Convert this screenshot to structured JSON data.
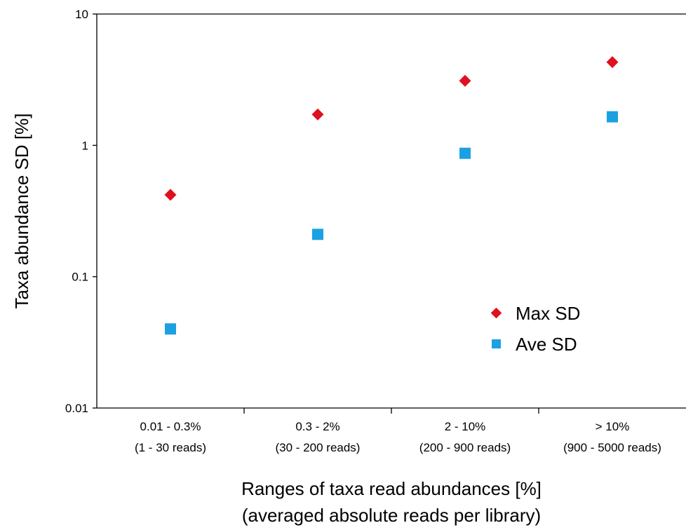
{
  "chart_data": {
    "type": "scatter",
    "y_scale": "log",
    "ylim": [
      0.01,
      10
    ],
    "y_ticks": [
      "0.01",
      "0.1",
      "1",
      "10"
    ],
    "categories": [
      {
        "line1": "0.01 - 0.3%",
        "line2": "(1 - 30 reads)"
      },
      {
        "line1": "0.3 - 2%",
        "line2": "(30 - 200 reads)"
      },
      {
        "line1": "2 - 10%",
        "line2": "(200 - 900 reads)"
      },
      {
        "line1": "> 10%",
        "line2": "(900 - 5000 reads)"
      }
    ],
    "series": [
      {
        "name": "Max SD",
        "marker": "diamond",
        "color": "#e0101e",
        "values": [
          0.42,
          1.72,
          3.1,
          4.3
        ]
      },
      {
        "name": "Ave SD",
        "marker": "square",
        "color": "#1ba1e2",
        "values": [
          0.04,
          0.21,
          0.87,
          1.65
        ]
      }
    ],
    "ylabel": "Taxa abundance SD [%]",
    "xlabel_line1": "Ranges of taxa read abundances [%]",
    "xlabel_line2": "(averaged absolute reads per library)",
    "legend_position": "center-right",
    "grid": false
  }
}
